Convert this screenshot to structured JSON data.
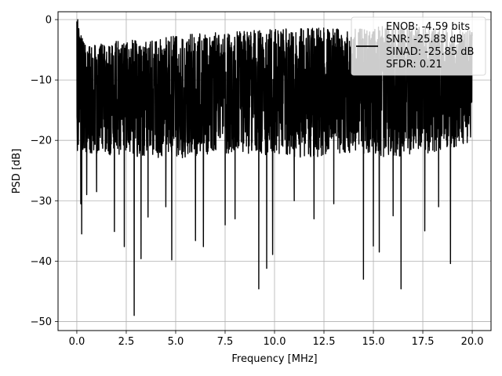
{
  "chart_data": {
    "type": "line",
    "title": "",
    "xlabel": "Frequency [MHz]",
    "ylabel": "PSD [dB]",
    "xlim": [
      -0.95,
      20.95
    ],
    "ylim": [
      -51.5,
      1.3
    ],
    "x_ticks": [
      0.0,
      2.5,
      5.0,
      7.5,
      10.0,
      12.5,
      15.0,
      17.5,
      20.0
    ],
    "x_tick_labels": [
      "0.0",
      "2.5",
      "5.0",
      "7.5",
      "10.0",
      "12.5",
      "15.0",
      "17.5",
      "20.0"
    ],
    "y_ticks": [
      0,
      -10,
      -20,
      -30,
      -40,
      -50
    ],
    "y_tick_labels": [
      "0",
      "−10",
      "−20",
      "−30",
      "−40",
      "−50"
    ],
    "grid": true,
    "legend_placement": "top-right",
    "series": [
      {
        "name": "ENOB: -4.59 bits\nSNR: -25.83 dB\nSINAD: -25.85 dB\nSFDR: 0.21",
        "color": "#000000",
        "band_top": [
          [
            0.0,
            -2.0
          ],
          [
            0.5,
            -6.5
          ],
          [
            2.0,
            -5.5
          ],
          [
            4.0,
            -5.0
          ],
          [
            6.0,
            -4.3
          ],
          [
            8.0,
            -4.0
          ],
          [
            10.0,
            -3.6
          ],
          [
            12.0,
            -3.4
          ],
          [
            14.0,
            -3.3
          ],
          [
            16.0,
            -3.0
          ],
          [
            18.0,
            -3.3
          ],
          [
            20.0,
            -3.5
          ]
        ],
        "band_bottom": [
          [
            0.0,
            -24.0
          ],
          [
            2.0,
            -24.5
          ],
          [
            5.0,
            -25.0
          ],
          [
            8.0,
            -24.0
          ],
          [
            10.0,
            -24.5
          ],
          [
            12.0,
            -25.0
          ],
          [
            14.0,
            -24.0
          ],
          [
            16.0,
            -25.0
          ],
          [
            18.0,
            -24.0
          ],
          [
            20.0,
            -22.5
          ]
        ],
        "peaks": [
          [
            0.0,
            -0.3
          ],
          [
            0.05,
            0.0
          ],
          [
            0.1,
            -1.5
          ],
          [
            0.15,
            -3.0
          ]
        ],
        "dips": [
          [
            0.2,
            -30.5
          ],
          [
            0.25,
            -35.5
          ],
          [
            0.5,
            -29.0
          ],
          [
            1.0,
            -28.5
          ],
          [
            1.9,
            -35.1
          ],
          [
            2.4,
            -37.6
          ],
          [
            2.9,
            -49.0
          ],
          [
            3.25,
            -39.6
          ],
          [
            3.6,
            -32.7
          ],
          [
            4.5,
            -31.0
          ],
          [
            4.8,
            -39.8
          ],
          [
            6.0,
            -36.6
          ],
          [
            6.4,
            -37.6
          ],
          [
            7.5,
            -34.0
          ],
          [
            8.0,
            -33.0
          ],
          [
            9.2,
            -44.6
          ],
          [
            9.6,
            -41.2
          ],
          [
            9.9,
            -38.9
          ],
          [
            11.0,
            -30.0
          ],
          [
            12.0,
            -33.0
          ],
          [
            13.0,
            -30.5
          ],
          [
            14.5,
            -43.0
          ],
          [
            15.0,
            -37.5
          ],
          [
            15.3,
            -38.5
          ],
          [
            16.0,
            -32.5
          ],
          [
            16.4,
            -44.6
          ],
          [
            17.6,
            -35.0
          ],
          [
            18.3,
            -31.0
          ],
          [
            18.9,
            -40.4
          ]
        ]
      }
    ]
  }
}
